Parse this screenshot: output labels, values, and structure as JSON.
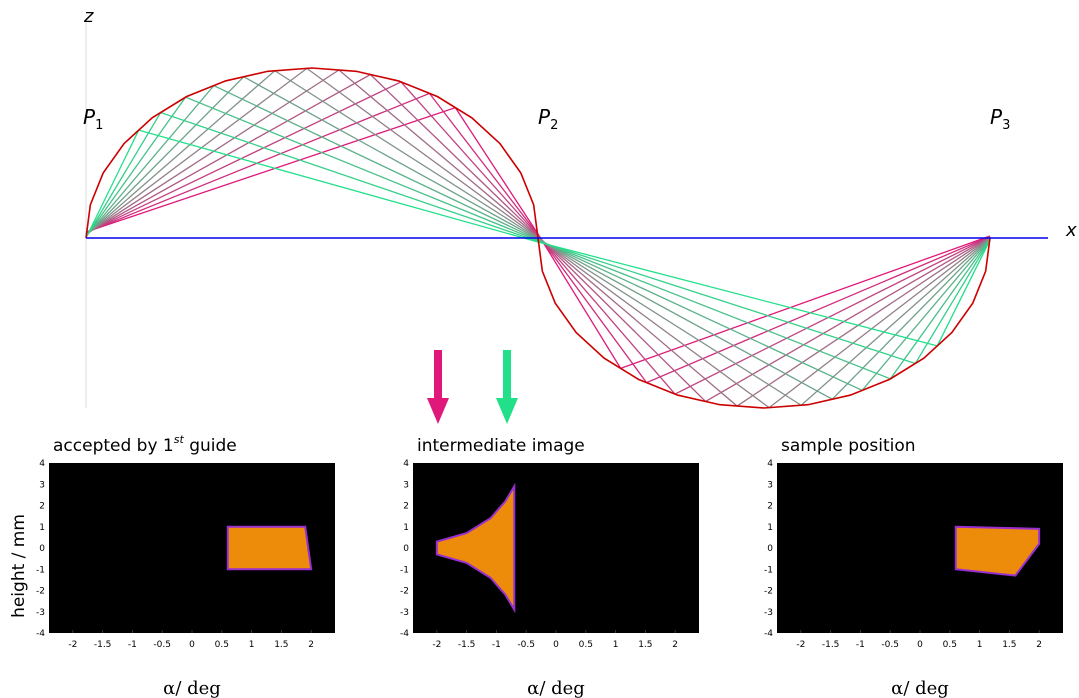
{
  "diagram": {
    "axis_labels": {
      "z": "z",
      "x": "x"
    },
    "points": [
      {
        "name": "P",
        "sub": "1"
      },
      {
        "name": "P",
        "sub": "2"
      },
      {
        "name": "P",
        "sub": "3"
      }
    ],
    "colors": {
      "guide": "#cc0000",
      "axis": "#0000ee",
      "ray_pink": "#e0187a",
      "ray_green": "#22e08a",
      "ray_gray": "#8a8a8a"
    },
    "arrows": [
      {
        "name": "pink-arrow",
        "color": "#e0187a"
      },
      {
        "name": "green-arrow",
        "color": "#22e08a"
      }
    ]
  },
  "panels": [
    {
      "title_main": "accepted by 1",
      "title_sup": "st",
      "title_end": " guide",
      "xlabel": "α/ deg"
    },
    {
      "title_main": "intermediate image",
      "title_sup": "",
      "title_end": "",
      "xlabel": "α/ deg"
    },
    {
      "title_main": "sample position",
      "title_sup": "",
      "title_end": "",
      "xlabel": "α/ deg"
    }
  ],
  "ylabel": "height / mm",
  "x_ticks": [
    "-2",
    "-1.5",
    "-1",
    "-0.5",
    "0",
    "0.5",
    "1",
    "1.5",
    "2"
  ],
  "y_ticks": [
    "4",
    "3",
    "2",
    "1",
    "0",
    "-1",
    "-2",
    "-3",
    "-4"
  ],
  "heatmap_colors": {
    "background": "#000000",
    "fill": "#ec8c0a",
    "edge": "#9a2fd0"
  },
  "chart_data": [
    {
      "type": "heatmap",
      "title": "accepted by 1st guide",
      "xlabel": "α/ deg",
      "ylabel": "height / mm",
      "xlim": [
        -2.4,
        2.4
      ],
      "ylim": [
        -4,
        4
      ],
      "region": [
        [
          0.6,
          1.0
        ],
        [
          1.9,
          1.0
        ],
        [
          2.0,
          -1.0
        ],
        [
          0.6,
          -1.0
        ]
      ]
    },
    {
      "type": "heatmap",
      "title": "intermediate image",
      "xlabel": "α/ deg",
      "ylabel": "height / mm",
      "xlim": [
        -2.4,
        2.4
      ],
      "ylim": [
        -4,
        4
      ],
      "region": [
        [
          -2.0,
          0.3
        ],
        [
          -1.5,
          0.7
        ],
        [
          -1.1,
          1.4
        ],
        [
          -0.85,
          2.2
        ],
        [
          -0.7,
          2.9
        ],
        [
          -0.7,
          -2.9
        ],
        [
          -0.85,
          -2.2
        ],
        [
          -1.1,
          -1.4
        ],
        [
          -1.5,
          -0.7
        ],
        [
          -2.0,
          -0.3
        ]
      ]
    },
    {
      "type": "heatmap",
      "title": "sample position",
      "xlabel": "α/ deg",
      "ylabel": "height / mm",
      "xlim": [
        -2.4,
        2.4
      ],
      "ylim": [
        -4,
        4
      ],
      "region": [
        [
          0.6,
          1.0
        ],
        [
          2.0,
          0.9
        ],
        [
          2.0,
          0.2
        ],
        [
          1.6,
          -1.3
        ],
        [
          0.6,
          -1.0
        ]
      ]
    }
  ]
}
